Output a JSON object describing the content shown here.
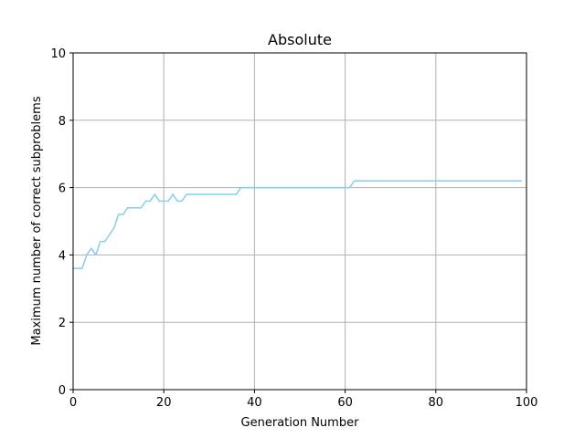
{
  "chart_data": {
    "type": "line",
    "title": "Absolute",
    "xlabel": "Generation Number",
    "ylabel": "Maximum number of correct subproblems",
    "xlim": [
      0,
      100
    ],
    "ylim": [
      0,
      10
    ],
    "xticks": [
      0,
      20,
      40,
      60,
      80,
      100
    ],
    "yticks": [
      0,
      2,
      4,
      6,
      8,
      10
    ],
    "xtick_labels": [
      "0",
      "20",
      "40",
      "60",
      "80",
      "100"
    ],
    "ytick_labels": [
      "0",
      "2",
      "4",
      "6",
      "8",
      "10"
    ],
    "grid": true,
    "series": [
      {
        "color": "#87ceeb",
        "x": [
          0,
          1,
          2,
          3,
          4,
          5,
          6,
          7,
          8,
          9,
          10,
          11,
          12,
          13,
          14,
          15,
          16,
          17,
          18,
          19,
          20,
          21,
          22,
          23,
          24,
          25,
          26,
          27,
          28,
          29,
          30,
          31,
          32,
          33,
          34,
          35,
          36,
          37,
          38,
          39,
          40,
          41,
          42,
          43,
          44,
          45,
          46,
          47,
          48,
          49,
          50,
          51,
          52,
          53,
          54,
          55,
          56,
          57,
          58,
          59,
          60,
          61,
          62,
          63,
          64,
          65,
          66,
          67,
          68,
          69,
          70,
          71,
          72,
          73,
          74,
          75,
          76,
          77,
          78,
          79,
          80,
          81,
          82,
          83,
          84,
          85,
          86,
          87,
          88,
          89,
          90,
          91,
          92,
          93,
          94,
          95,
          96,
          97,
          98,
          99
        ],
        "y": [
          3.6,
          3.6,
          3.6,
          4.0,
          4.2,
          4.0,
          4.4,
          4.4,
          4.6,
          4.8,
          5.2,
          5.2,
          5.4,
          5.4,
          5.4,
          5.4,
          5.6,
          5.6,
          5.8,
          5.6,
          5.6,
          5.6,
          5.8,
          5.6,
          5.6,
          5.8,
          5.8,
          5.8,
          5.8,
          5.8,
          5.8,
          5.8,
          5.8,
          5.8,
          5.8,
          5.8,
          5.8,
          6.0,
          6.0,
          6.0,
          6.0,
          6.0,
          6.0,
          6.0,
          6.0,
          6.0,
          6.0,
          6.0,
          6.0,
          6.0,
          6.0,
          6.0,
          6.0,
          6.0,
          6.0,
          6.0,
          6.0,
          6.0,
          6.0,
          6.0,
          6.0,
          6.0,
          6.2,
          6.2,
          6.2,
          6.2,
          6.2,
          6.2,
          6.2,
          6.2,
          6.2,
          6.2,
          6.2,
          6.2,
          6.2,
          6.2,
          6.2,
          6.2,
          6.2,
          6.2,
          6.2,
          6.2,
          6.2,
          6.2,
          6.2,
          6.2,
          6.2,
          6.2,
          6.2,
          6.2,
          6.2,
          6.2,
          6.2,
          6.2,
          6.2,
          6.2,
          6.2,
          6.2,
          6.2,
          6.2
        ]
      }
    ]
  }
}
